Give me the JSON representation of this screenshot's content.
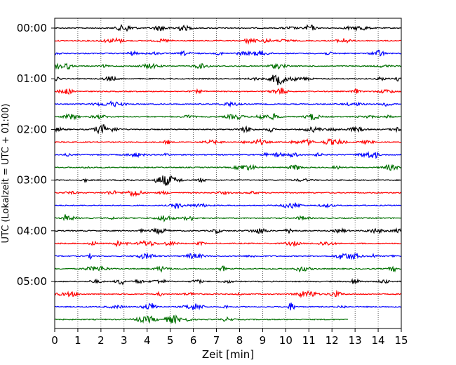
{
  "chart_data": {
    "type": "line",
    "title": "",
    "xlabel": "Zeit  [min]",
    "ylabel": "UTC (Lokalzeit = UTC + 01:00)",
    "xlim": [
      0,
      15
    ],
    "x_ticks": [
      0,
      1,
      2,
      3,
      4,
      5,
      6,
      7,
      8,
      9,
      10,
      11,
      12,
      13,
      14,
      15
    ],
    "x_tick_labels": [
      "0",
      "1",
      "2",
      "3",
      "4",
      "5",
      "6",
      "7",
      "8",
      "9",
      "10",
      "11",
      "12",
      "13",
      "14",
      "15"
    ],
    "y_tick_labels": [
      "00:00",
      "01:00",
      "02:00",
      "03:00",
      "04:00",
      "05:00"
    ],
    "grid": "vertical dotted",
    "trace_colors": [
      "#000000",
      "#ff0000",
      "#0000ff",
      "#007000"
    ],
    "series": [
      {
        "start": "00:00",
        "color": "#000000",
        "x_end": 15
      },
      {
        "start": "00:15",
        "color": "#ff0000",
        "x_end": 15
      },
      {
        "start": "00:30",
        "color": "#0000ff",
        "x_end": 15
      },
      {
        "start": "00:45",
        "color": "#007000",
        "x_end": 15
      },
      {
        "start": "01:00",
        "color": "#000000",
        "x_end": 15
      },
      {
        "start": "01:15",
        "color": "#ff0000",
        "x_end": 15
      },
      {
        "start": "01:30",
        "color": "#0000ff",
        "x_end": 15
      },
      {
        "start": "01:45",
        "color": "#007000",
        "x_end": 15
      },
      {
        "start": "02:00",
        "color": "#000000",
        "x_end": 15
      },
      {
        "start": "02:15",
        "color": "#ff0000",
        "x_end": 15
      },
      {
        "start": "02:30",
        "color": "#0000ff",
        "x_end": 15
      },
      {
        "start": "02:45",
        "color": "#007000",
        "x_end": 15
      },
      {
        "start": "03:00",
        "color": "#000000",
        "x_end": 15
      },
      {
        "start": "03:15",
        "color": "#ff0000",
        "x_end": 15
      },
      {
        "start": "03:30",
        "color": "#0000ff",
        "x_end": 15
      },
      {
        "start": "03:45",
        "color": "#007000",
        "x_end": 15
      },
      {
        "start": "04:00",
        "color": "#000000",
        "x_end": 15
      },
      {
        "start": "04:15",
        "color": "#ff0000",
        "x_end": 15
      },
      {
        "start": "04:30",
        "color": "#0000ff",
        "x_end": 15
      },
      {
        "start": "04:45",
        "color": "#007000",
        "x_end": 15
      },
      {
        "start": "05:00",
        "color": "#000000",
        "x_end": 15
      },
      {
        "start": "05:15",
        "color": "#ff0000",
        "x_end": 15
      },
      {
        "start": "05:30",
        "color": "#0000ff",
        "x_end": 15
      },
      {
        "start": "05:45",
        "color": "#007000",
        "x_end": 12.7
      }
    ]
  }
}
